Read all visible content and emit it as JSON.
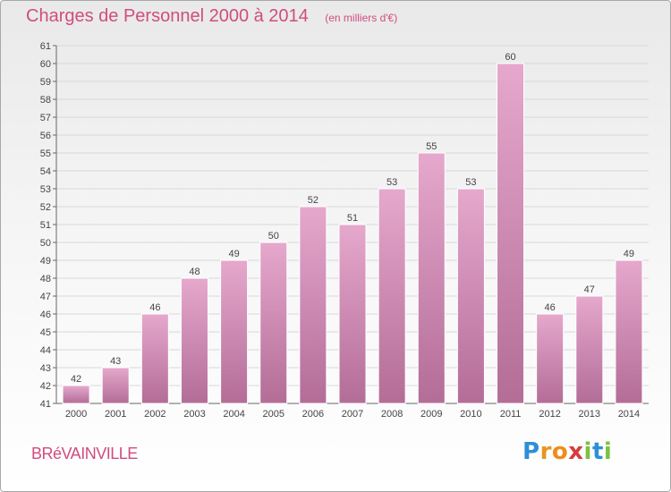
{
  "header": {
    "title": "Charges de Personnel 2000 à 2014",
    "subtitle": "(en milliers d'€)"
  },
  "footer": {
    "commune": "BRéVAINVILLE",
    "logo_letters": [
      "P",
      "r",
      "o",
      "x",
      "i",
      "t",
      "i"
    ],
    "logo_colors": [
      "#2e8fd6",
      "#e8951e",
      "#f08c1a",
      "#d63c3c",
      "#7cc142",
      "#2e8fd6",
      "#7cc142"
    ]
  },
  "chart_data": {
    "type": "bar",
    "title": "Charges de Personnel 2000 à 2014",
    "subtitle": "(en milliers d'€)",
    "xlabel": "",
    "ylabel": "",
    "categories": [
      "2000",
      "2001",
      "2002",
      "2003",
      "2004",
      "2005",
      "2006",
      "2007",
      "2008",
      "2009",
      "2010",
      "2011",
      "2012",
      "2013",
      "2014"
    ],
    "values": [
      42,
      43,
      46,
      48,
      49,
      50,
      52,
      51,
      53,
      55,
      53,
      60,
      46,
      47,
      49
    ],
    "ylim": [
      41,
      61
    ],
    "yticks": [
      41,
      42,
      43,
      44,
      45,
      46,
      47,
      48,
      49,
      50,
      51,
      52,
      53,
      54,
      55,
      56,
      57,
      58,
      59,
      60,
      61
    ],
    "grid": true,
    "colors": {
      "bar_top": "#e6a8cd",
      "bar_bottom": "#b36d97",
      "grid": "#d8d8d8"
    }
  }
}
